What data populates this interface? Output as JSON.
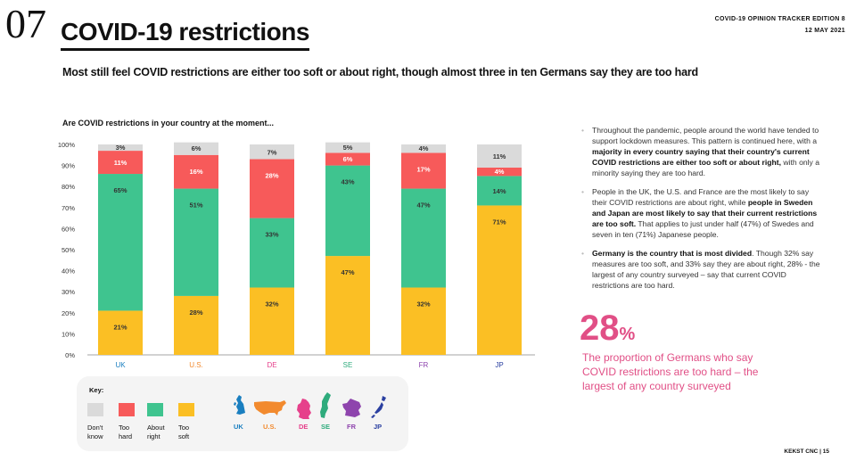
{
  "header": {
    "slide_number": "07",
    "title": "COVID-19 restrictions",
    "edition_line1": "COVID-19 OPINION TRACKER EDITION  8",
    "edition_line2": "12 MAY 2021"
  },
  "subtitle": "Most still feel COVID restrictions are either too soft or about right, though almost three in ten Germans say they are too hard",
  "chart_data": {
    "type": "bar",
    "stacked": true,
    "title": "Are COVID restrictions in your country at the moment...",
    "categories": [
      "UK",
      "U.S.",
      "DE",
      "SE",
      "FR",
      "JP"
    ],
    "category_colors": [
      "#1a7fc0",
      "#f28a2e",
      "#e6408b",
      "#2eab7c",
      "#8e44ad",
      "#2a3fa0"
    ],
    "series": [
      {
        "name": "Too soft",
        "color": "#fbbf24",
        "values": [
          21,
          28,
          32,
          47,
          32,
          71
        ],
        "labels": [
          "21%",
          "28%",
          "32%",
          "47%",
          "32%",
          "71%"
        ]
      },
      {
        "name": "About right",
        "color": "#3fc48f",
        "values": [
          65,
          51,
          33,
          43,
          47,
          14
        ],
        "labels": [
          "65%",
          "51%",
          "33%",
          "43%",
          "47%",
          "14%"
        ]
      },
      {
        "name": "Too hard",
        "color": "#f75a5a",
        "values": [
          11,
          16,
          28,
          6,
          17,
          4
        ],
        "labels": [
          "11%",
          "16%",
          "28%",
          "6%",
          "17%",
          "4%"
        ]
      },
      {
        "name": "Don't know",
        "color": "#dadada",
        "values": [
          3,
          6,
          7,
          5,
          4,
          11
        ],
        "labels": [
          "3%",
          "6%",
          "7%",
          "5%",
          "4%",
          "11%"
        ]
      }
    ],
    "yticks": [
      "0%",
      "10%",
      "20%",
      "30%",
      "40%",
      "50%",
      "60%",
      "70%",
      "80%",
      "90%",
      "100%"
    ],
    "ylim": [
      0,
      100
    ]
  },
  "key": {
    "title": "Key:",
    "items": [
      {
        "label_line1": "Don't",
        "label_line2": "know",
        "color": "#dadada"
      },
      {
        "label_line1": "Too",
        "label_line2": "hard",
        "color": "#f75a5a"
      },
      {
        "label_line1": "About",
        "label_line2": "right",
        "color": "#3fc48f"
      },
      {
        "label_line1": "Too",
        "label_line2": "soft",
        "color": "#fbbf24"
      }
    ],
    "countries": [
      "UK",
      "U.S.",
      "DE",
      "SE",
      "FR",
      "JP"
    ]
  },
  "bullets": {
    "b1_a": "Throughout the pandemic, people around the world have tended to support lockdown measures. This pattern is continued here, with a ",
    "b1_bold": "majority in every country saying that their country's current COVID restrictions are either too soft or about right,",
    "b1_b": " with only a minority saying they are too hard.",
    "b2_a": "People in the UK, the U.S. and France are the most likely to say their COVID restrictions are about right, while ",
    "b2_bold": "people in Sweden and Japan are most likely to say that their current restrictions are too soft.",
    "b2_b": " That applies to just under half (47%) of Swedes and seven in ten (71%) Japanese people.",
    "b3_bold": "Germany is the country that is most divided",
    "b3_a": ". Though 32% say measures are too soft, and 33% say they are about right, 28% - the largest of any country surveyed – say that current COVID restrictions are too hard."
  },
  "stat": {
    "value": "28",
    "unit": "%",
    "description": "The proportion of Germans who say COVID restrictions are too hard – the largest of any country surveyed"
  },
  "footer": "KEKST CNC | 15"
}
